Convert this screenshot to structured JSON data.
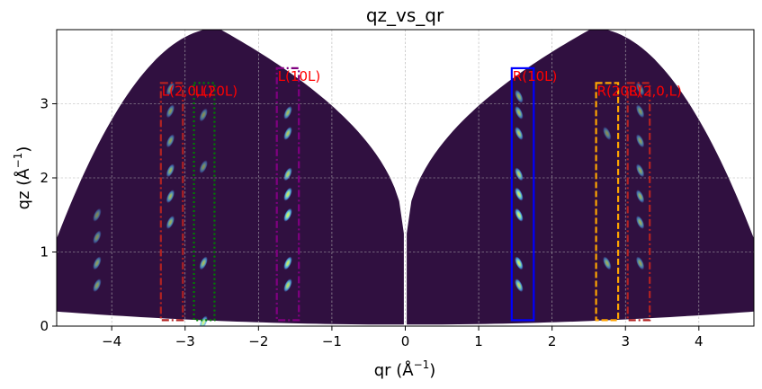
{
  "chart_data": {
    "type": "heatmap",
    "title": "qz_vs_qr",
    "xlabel": "qr (Å",
    "xlabel_sup": "−1",
    "xlabel_tail": ")",
    "ylabel": "qz (Å",
    "ylabel_sup": "−1",
    "ylabel_tail": ")",
    "xlim": [
      -4.75,
      4.75
    ],
    "ylim": [
      0,
      4.0
    ],
    "xticks": [
      -4,
      -3,
      -2,
      -1,
      0,
      1,
      2,
      3,
      4
    ],
    "xtick_labels": [
      "−4",
      "−3",
      "−2",
      "−1",
      "0",
      "1",
      "2",
      "3",
      "4"
    ],
    "yticks": [
      0,
      1,
      2,
      3
    ],
    "ytick_labels": [
      "0",
      "1",
      "2",
      "3"
    ],
    "grid": true,
    "colors": {
      "background": "#301040",
      "spot_mid": "#4a9ee8",
      "spot_high": "#9ff7a0",
      "spot_peak": "#f5e94a"
    },
    "rois": [
      {
        "label": "L(2,0,L)",
        "x": [
          -3.33,
          -3.03
        ],
        "y": [
          0.08,
          3.28
        ],
        "color": "#b22222",
        "style": "dashdot"
      },
      {
        "label": "L(20L)",
        "x": [
          -2.88,
          -2.6
        ],
        "y": [
          0.08,
          3.28
        ],
        "color": "#008000",
        "style": "dotted"
      },
      {
        "label": "L(10L)",
        "x": [
          -1.75,
          -1.45
        ],
        "y": [
          0.08,
          3.48
        ],
        "color": "#800080",
        "style": "dashdot"
      },
      {
        "label": "R(10L)",
        "x": [
          1.45,
          1.75
        ],
        "y": [
          0.08,
          3.48
        ],
        "color": "#0000ff",
        "style": "solid"
      },
      {
        "label": "R(20L)",
        "x": [
          2.6,
          2.9
        ],
        "y": [
          0.08,
          3.28
        ],
        "color": "#ffa500",
        "style": "dashed"
      },
      {
        "label": "R(2,0,L)",
        "x": [
          3.03,
          3.33
        ],
        "y": [
          0.08,
          3.28
        ],
        "color": "#b22222",
        "style": "dashdot"
      }
    ],
    "spots": [
      {
        "qr": 1.55,
        "qz": 0.55,
        "i": 0.8
      },
      {
        "qr": 1.55,
        "qz": 0.85,
        "i": 0.9
      },
      {
        "qr": 1.55,
        "qz": 1.5,
        "i": 0.95
      },
      {
        "qr": 1.55,
        "qz": 1.78,
        "i": 0.9
      },
      {
        "qr": 1.55,
        "qz": 2.05,
        "i": 0.75
      },
      {
        "qr": 1.55,
        "qz": 2.6,
        "i": 0.7
      },
      {
        "qr": 1.55,
        "qz": 2.88,
        "i": 0.6
      },
      {
        "qr": 1.55,
        "qz": 3.1,
        "i": 0.5
      },
      {
        "qr": -1.6,
        "qz": 0.55,
        "i": 0.8
      },
      {
        "qr": -1.6,
        "qz": 0.85,
        "i": 0.9
      },
      {
        "qr": -1.6,
        "qz": 1.5,
        "i": 0.95
      },
      {
        "qr": -1.6,
        "qz": 1.78,
        "i": 0.9
      },
      {
        "qr": -1.6,
        "qz": 2.05,
        "i": 0.75
      },
      {
        "qr": -1.6,
        "qz": 2.6,
        "i": 0.7
      },
      {
        "qr": -1.6,
        "qz": 2.88,
        "i": 0.6
      },
      {
        "qr": -2.75,
        "qz": 0.85,
        "i": 0.6
      },
      {
        "qr": -2.75,
        "qz": 0.05,
        "i": 0.7
      },
      {
        "qr": -2.75,
        "qz": 2.15,
        "i": 0.3
      },
      {
        "qr": -2.75,
        "qz": 2.85,
        "i": 0.3
      },
      {
        "qr": 2.75,
        "qz": 0.85,
        "i": 0.5
      },
      {
        "qr": 2.75,
        "qz": 2.6,
        "i": 0.3
      },
      {
        "qr": -3.2,
        "qz": 1.4,
        "i": 0.5
      },
      {
        "qr": -3.2,
        "qz": 1.75,
        "i": 0.55
      },
      {
        "qr": -3.2,
        "qz": 2.1,
        "i": 0.5
      },
      {
        "qr": -3.2,
        "qz": 2.5,
        "i": 0.4
      },
      {
        "qr": -3.2,
        "qz": 2.9,
        "i": 0.35
      },
      {
        "qr": -3.2,
        "qz": 3.2,
        "i": 0.3
      },
      {
        "qr": 3.2,
        "qz": 0.85,
        "i": 0.45
      },
      {
        "qr": 3.2,
        "qz": 1.4,
        "i": 0.5
      },
      {
        "qr": 3.2,
        "qz": 1.75,
        "i": 0.5
      },
      {
        "qr": 3.2,
        "qz": 2.1,
        "i": 0.45
      },
      {
        "qr": 3.2,
        "qz": 2.5,
        "i": 0.4
      },
      {
        "qr": 3.2,
        "qz": 2.9,
        "i": 0.35
      },
      {
        "qr": 3.2,
        "qz": 3.2,
        "i": 0.3
      },
      {
        "qr": -4.2,
        "qz": 0.55,
        "i": 0.4
      },
      {
        "qr": -4.2,
        "qz": 0.85,
        "i": 0.4
      },
      {
        "qr": -4.2,
        "qz": 1.2,
        "i": 0.3
      },
      {
        "qr": -4.2,
        "qz": 1.5,
        "i": 0.25
      }
    ]
  }
}
